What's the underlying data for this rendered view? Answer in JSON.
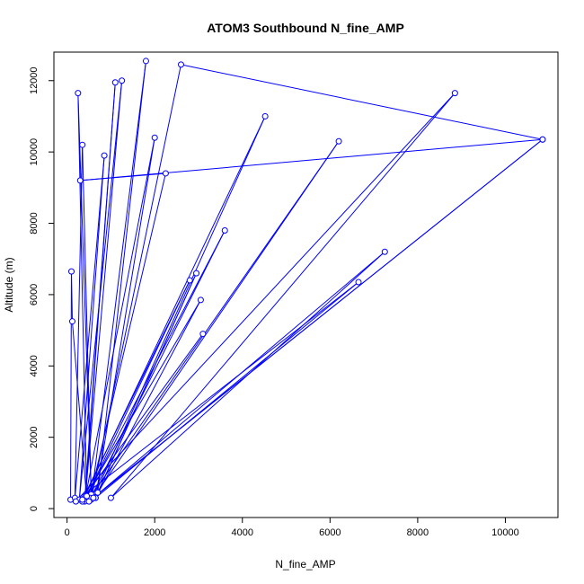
{
  "chart_data": {
    "type": "scatter",
    "title": "ATOM3 Southbound N_fine_AMP",
    "xlabel": "N_fine_AMP",
    "ylabel": "Altitude (m)",
    "xlim": [
      -300,
      11200
    ],
    "ylim": [
      -250,
      12800
    ],
    "xticks": [
      0,
      2000,
      4000,
      6000,
      8000,
      10000
    ],
    "yticks": [
      0,
      2000,
      4000,
      6000,
      8000,
      10000,
      12000
    ],
    "grid": false,
    "legend": "none",
    "series_color": "#0000ff",
    "series": [
      {
        "marker": "open-circle",
        "line": true,
        "points": [
          [
            80,
            250
          ],
          [
            100,
            6650
          ],
          [
            120,
            5250
          ],
          [
            450,
            250
          ],
          [
            250,
            11650
          ],
          [
            550,
            400
          ],
          [
            350,
            10200
          ],
          [
            180,
            300
          ],
          [
            850,
            9900
          ],
          [
            280,
            250
          ],
          [
            1250,
            12000
          ],
          [
            420,
            350
          ],
          [
            1100,
            11950
          ],
          [
            400,
            200
          ],
          [
            2000,
            10400
          ],
          [
            650,
            300
          ],
          [
            2950,
            6600
          ],
          [
            700,
            450
          ],
          [
            1800,
            12550
          ],
          [
            550,
            250
          ],
          [
            2600,
            12450
          ],
          [
            10850,
            10350
          ],
          [
            300,
            9200
          ],
          [
            2250,
            9400
          ],
          [
            520,
            300
          ],
          [
            6200,
            10300
          ],
          [
            600,
            300
          ],
          [
            4520,
            11000
          ],
          [
            350,
            200
          ],
          [
            3050,
            5850
          ],
          [
            650,
            300
          ],
          [
            6650,
            6350
          ],
          [
            200,
            200
          ],
          [
            8850,
            11650
          ],
          [
            1000,
            300
          ],
          [
            7250,
            7200
          ],
          [
            600,
            300
          ],
          [
            10850,
            10350
          ],
          [
            500,
            200
          ],
          [
            3600,
            7800
          ],
          [
            450,
            350
          ],
          [
            2800,
            6400
          ],
          [
            350,
            250
          ],
          [
            3100,
            4900
          ]
        ]
      }
    ]
  }
}
